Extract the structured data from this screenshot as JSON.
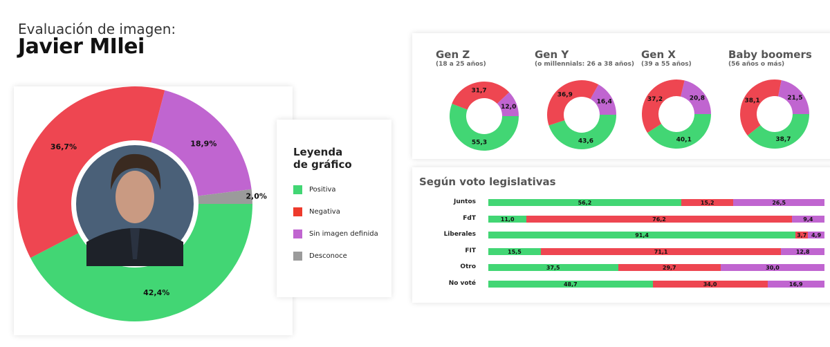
{
  "header": {
    "subtitle": "Evaluación de imagen:",
    "title": "Javier MIlei"
  },
  "colors": {
    "positive": "#42d674",
    "negative": "#ee4651",
    "undefined": "#c065d0",
    "unknown": "#9b9b9b"
  },
  "legend": {
    "title_line1": "Leyenda",
    "title_line2": "de gráfico",
    "items": [
      "Positiva",
      "Negativa",
      "Sin imagen definida",
      "Desconoce"
    ]
  },
  "chart_data": [
    {
      "type": "pie",
      "variant": "donut",
      "categories": [
        "Positiva",
        "Negativa",
        "Sin imagen definida",
        "Desconoce"
      ],
      "values": [
        42.4,
        36.7,
        18.9,
        2.0
      ],
      "labels": [
        "42,4%",
        "36,7%",
        "18,9%",
        "2,0%"
      ]
    },
    {
      "type": "pie",
      "variant": "donut",
      "title": "Gen Z",
      "subtitle": "(18 a 25 años)",
      "categories": [
        "Positiva",
        "Negativa",
        "Sin imagen definida"
      ],
      "values": [
        55.3,
        31.7,
        12.0
      ],
      "labels": [
        "55,3",
        "31,7",
        "12,0"
      ]
    },
    {
      "type": "pie",
      "variant": "donut",
      "title": "Gen Y",
      "subtitle": "(o millennials: 26 a 38 años)",
      "categories": [
        "Positiva",
        "Negativa",
        "Sin imagen definida"
      ],
      "values": [
        43.6,
        36.9,
        16.4
      ],
      "labels": [
        "43,6",
        "36,9",
        "16,4"
      ]
    },
    {
      "type": "pie",
      "variant": "donut",
      "title": "Gen X",
      "subtitle": "(39 a 55 años)",
      "categories": [
        "Positiva",
        "Negativa",
        "Sin imagen definida"
      ],
      "values": [
        40.1,
        37.2,
        20.8
      ],
      "labels": [
        "40,1",
        "37,2",
        "20,8"
      ]
    },
    {
      "type": "pie",
      "variant": "donut",
      "title": "Baby boomers",
      "subtitle": "(56 años o más)",
      "categories": [
        "Positiva",
        "Negativa",
        "Sin imagen definida"
      ],
      "values": [
        38.7,
        38.1,
        21.5
      ],
      "labels": [
        "38,7",
        "38,1",
        "21,5"
      ]
    },
    {
      "type": "bar",
      "orientation": "horizontal",
      "stacked": true,
      "title": "Según voto legislativas",
      "categories": [
        "Juntos",
        "FdT",
        "Liberales",
        "FIT",
        "Otro",
        "No voté"
      ],
      "series": [
        {
          "name": "Positiva",
          "values": [
            56.2,
            11.0,
            91.4,
            15.5,
            37.5,
            48.7
          ],
          "labels": [
            "56,2",
            "11,0",
            "91,4",
            "15,5",
            "37,5",
            "48,7"
          ]
        },
        {
          "name": "Negativa",
          "values": [
            15.2,
            76.2,
            3.7,
            71.1,
            29.7,
            34.0
          ],
          "labels": [
            "15,2",
            "76,2",
            "3,7",
            "71,1",
            "29,7",
            "34,0"
          ]
        },
        {
          "name": "Sin imagen definida",
          "values": [
            26.5,
            9.4,
            4.9,
            12.8,
            30.0,
            16.9
          ],
          "labels": [
            "26,5",
            "9,4",
            "4,9",
            "12,8",
            "30,0",
            "16,9"
          ]
        }
      ]
    }
  ]
}
